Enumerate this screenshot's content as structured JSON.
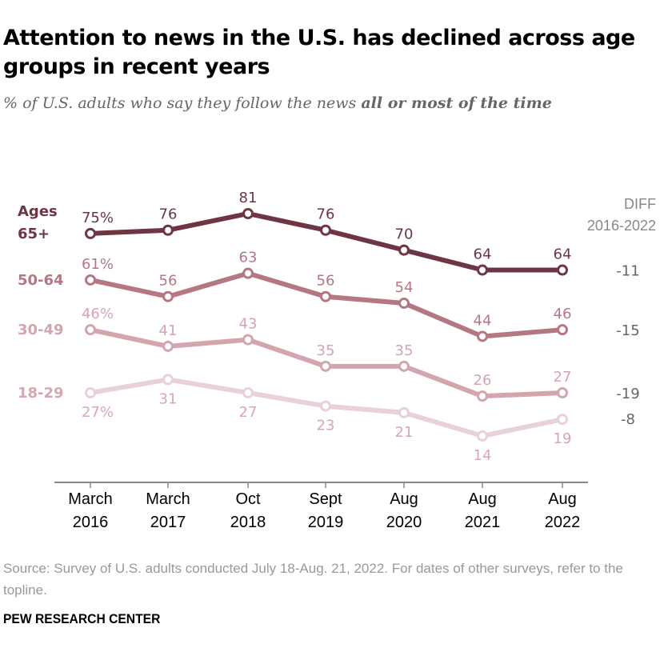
{
  "title": "Attention to news in the U.S. has declined across age groups in recent years",
  "subtitle_prefix": "% of U.S. adults who say they follow the news ",
  "subtitle_emphasis": "all or most of the time",
  "source": "Source: Survey of U.S. adults conducted July 18-Aug. 21, 2022. For dates of other surveys, refer to the topline.",
  "organization": "PEW RESEARCH CENTER",
  "chart_data": {
    "type": "line",
    "x_tick_labels": [
      [
        "March",
        "2016"
      ],
      [
        "March",
        "2017"
      ],
      [
        "Oct",
        "2018"
      ],
      [
        "Sept",
        "2019"
      ],
      [
        "Aug",
        "2020"
      ],
      [
        "Aug",
        "2021"
      ],
      [
        "Aug",
        "2022"
      ]
    ],
    "ylim": [
      0,
      81
    ],
    "grid": false,
    "diff_header": [
      "DIFF",
      "2016-2022"
    ],
    "series": [
      {
        "name": "Ages 65+",
        "name_lines": [
          "Ages",
          "65+"
        ],
        "color": "#6e3643",
        "label_color": "#6e3643",
        "values": [
          75,
          76,
          81,
          76,
          70,
          64,
          64
        ],
        "labels": [
          "75%",
          "76",
          "81",
          "76",
          "70",
          "64",
          "64"
        ],
        "label_pos": "above",
        "diff": "-11"
      },
      {
        "name": "50-64",
        "name_lines": [
          "50-64"
        ],
        "color": "#b57882",
        "label_color": "#b57882",
        "values": [
          61,
          56,
          63,
          56,
          54,
          44,
          46
        ],
        "labels": [
          "61%",
          "56",
          "63",
          "56",
          "54",
          "44",
          "46"
        ],
        "label_pos": "above",
        "diff": "-15"
      },
      {
        "name": "30-49",
        "name_lines": [
          "30-49"
        ],
        "color": "#d3a6ad",
        "label_color": "#d3a6ad",
        "values": [
          46,
          41,
          43,
          35,
          35,
          26,
          27
        ],
        "labels": [
          "46%",
          "41",
          "43",
          "35",
          "35",
          "26",
          "27"
        ],
        "label_pos": "above",
        "diff": "-19"
      },
      {
        "name": "18-29",
        "name_lines": [
          "18-29"
        ],
        "color": "#e8d2d6",
        "label_color": "#d6a8b0",
        "values": [
          27,
          31,
          27,
          23,
          21,
          14,
          19
        ],
        "labels": [
          "27%",
          "31",
          "27",
          "23",
          "21",
          "14",
          "19"
        ],
        "label_pos": "below",
        "diff": "-8"
      }
    ]
  }
}
